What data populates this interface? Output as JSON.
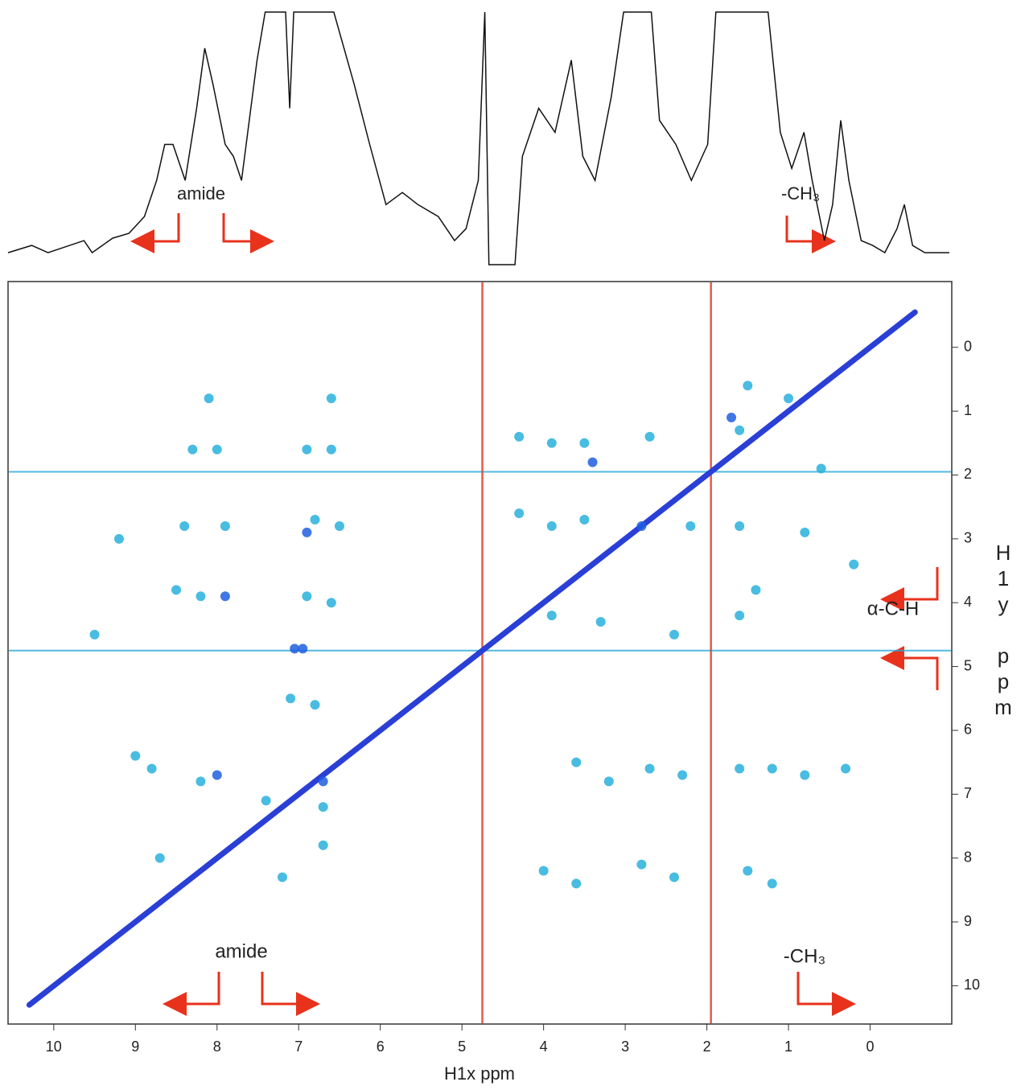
{
  "chart_data": [
    {
      "type": "line",
      "color": "#111111",
      "xlim": [
        10.56,
        -1.0
      ],
      "ylim": [
        -7,
        100
      ],
      "x": [
        10.56,
        10.27,
        10.07,
        9.63,
        9.53,
        9.28,
        9.08,
        8.89,
        8.74,
        8.64,
        8.54,
        8.39,
        8.25,
        8.15,
        8.05,
        7.9,
        7.8,
        7.7,
        7.51,
        7.41,
        7.16,
        7.11,
        7.06,
        6.57,
        6.32,
        6.13,
        5.93,
        5.73,
        5.54,
        5.29,
        5.09,
        4.95,
        4.8,
        4.72,
        4.67,
        4.6,
        4.35,
        4.26,
        4.06,
        3.86,
        3.66,
        3.52,
        3.37,
        3.17,
        3.02,
        2.68,
        2.58,
        2.38,
        2.19,
        1.99,
        1.89,
        1.74,
        1.25,
        1.1,
        0.96,
        0.81,
        0.71,
        0.56,
        0.46,
        0.36,
        0.26,
        0.11,
        -0.03,
        -0.18,
        -0.33,
        -0.42,
        -0.52,
        -0.67,
        -0.97
      ],
      "values": [
        0,
        3,
        0,
        5,
        0,
        6,
        8,
        15,
        30,
        45,
        45,
        30,
        60,
        85,
        70,
        45,
        40,
        30,
        80,
        100,
        100,
        60,
        100,
        100,
        70,
        45,
        20,
        25,
        20,
        15,
        5,
        10,
        30,
        100,
        -5,
        -5,
        -5,
        40,
        60,
        50,
        80,
        40,
        30,
        65,
        100,
        100,
        55,
        45,
        30,
        45,
        100,
        100,
        100,
        50,
        35,
        50,
        30,
        5,
        20,
        55,
        30,
        5,
        3,
        0,
        10,
        20,
        3,
        0,
        0
      ],
      "annotations": [
        "amide",
        "-CH₃"
      ]
    },
    {
      "type": "scatter",
      "x_label": "H1x ppm",
      "y_label": "H1y ppm",
      "xlim": [
        10.56,
        -1.0
      ],
      "ylim": [
        -1.03,
        10.6
      ],
      "xticks": [
        10,
        9,
        8,
        7,
        6,
        5,
        4,
        3,
        2,
        1,
        0
      ],
      "yticks": [
        0,
        1,
        2,
        3,
        4,
        5,
        6,
        7,
        8,
        9,
        10
      ],
      "hlines": [
        1.95,
        4.75
      ],
      "hline_color": "#27a8d8",
      "vlines": [
        4.75,
        1.95
      ],
      "vline_color": "#e0402a",
      "series": [
        {
          "color": "#2a3fd6",
          "mode": "line",
          "x": [
            -0.55,
            10.3
          ],
          "values": [
            -0.55,
            10.3
          ]
        },
        {
          "color": "#29b0dc",
          "mode": "points",
          "x": [
            8.3,
            8.0,
            6.9,
            6.6,
            8.4,
            7.9,
            6.8,
            6.5,
            8.5,
            8.2,
            6.9,
            6.6,
            8.1,
            6.6,
            3.9,
            3.5,
            2.7,
            1.6,
            3.9,
            3.5,
            2.2,
            1.6,
            1.4,
            1.6,
            3.9,
            3.3,
            2.4,
            3.6,
            3.2,
            2.7,
            2.3,
            1.6,
            1.2,
            0.8,
            0.3,
            4.0,
            3.6,
            2.8,
            2.4,
            1.5,
            1.2,
            8.8,
            8.2,
            7.4,
            6.7,
            7.1,
            6.8,
            6.7,
            8.7,
            7.2,
            9.0,
            4.3,
            4.3,
            1.5,
            1.0,
            0.8,
            0.6,
            0.2,
            9.2,
            9.5
          ],
          "values": [
            1.6,
            1.6,
            1.6,
            1.6,
            2.8,
            2.8,
            2.7,
            2.8,
            3.8,
            3.9,
            3.9,
            4.0,
            0.8,
            0.8,
            1.5,
            1.5,
            1.4,
            1.3,
            2.8,
            2.7,
            2.8,
            2.8,
            3.8,
            4.2,
            4.2,
            4.3,
            4.5,
            6.5,
            6.8,
            6.6,
            6.7,
            6.6,
            6.6,
            6.7,
            6.6,
            8.2,
            8.4,
            8.1,
            8.3,
            8.2,
            8.4,
            6.6,
            6.8,
            7.1,
            7.2,
            5.5,
            5.6,
            7.8,
            8.0,
            8.3,
            6.4,
            2.6,
            1.4,
            0.6,
            0.8,
            2.9,
            1.9,
            3.4,
            3.0,
            4.5
          ]
        },
        {
          "color": "#1e5fe0",
          "mode": "points",
          "x": [
            7.05,
            6.95,
            8.0,
            6.7,
            6.9,
            7.9,
            3.4,
            2.8,
            1.7
          ],
          "values": [
            4.72,
            4.72,
            6.7,
            6.8,
            2.9,
            3.9,
            1.8,
            2.8,
            1.1
          ]
        }
      ],
      "annotations": [
        "amide",
        "-CH₃",
        "α-C-H"
      ]
    }
  ]
}
